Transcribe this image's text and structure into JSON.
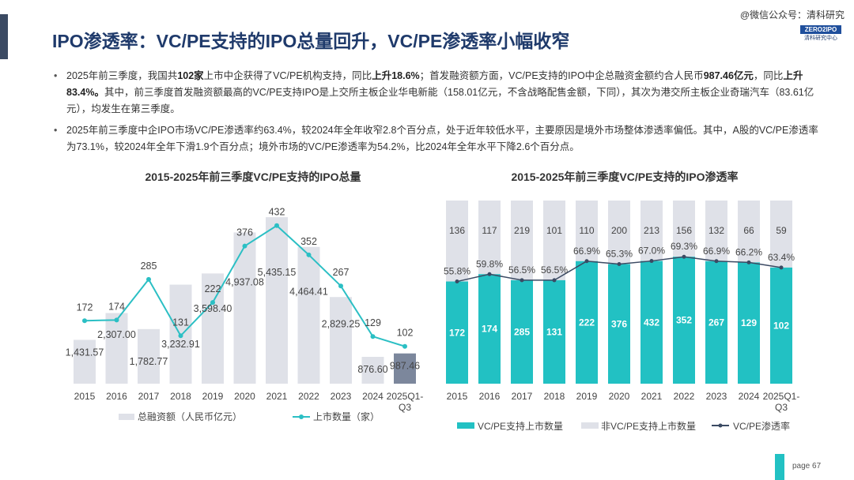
{
  "header": {
    "title": "IPO渗透率：VC/PE支持的IPO总量回升，VC/PE渗透率小幅收窄",
    "watermark": "@微信公众号：清科研究",
    "logo_text": "ZERO2IPO",
    "logo_sub": "清科研究中心"
  },
  "bullets": [
    [
      "2025年前三季度，我国共",
      "102家",
      "上市中企获得了VC/PE机构支持，同比",
      "上升18.6%",
      "；首发融资额方面，VC/PE支持的IPO中企总融资金额约合人民币",
      "987.46亿元",
      "，同比",
      "上升83.4%。",
      "其中，前三季度首发融资额最高的VC/PE支持IPO是上交所主板企业华电新能（158.01亿元，不含战略配售金额，下同），其次为港交所主板企业奇瑞汽车（83.61亿元），均发生在第三季度。"
    ],
    [
      "2025年前三季度中企IPO市场VC/PE渗透率约63.4%，较2024年全年收窄2.8个百分点，处于近年较低水平，主要原因是境外市场整体渗透率偏低。其中，A股的VC/PE渗透率为73.1%，较2024年全年下滑1.9个百分点；境外市场的VC/PE渗透率为54.2%，比2024年全年水平下降2.6个百分点。"
    ]
  ],
  "chart_data": [
    {
      "type": "bar+line",
      "title": "2015-2025年前三季度VC/PE支持的IPO总量",
      "categories": [
        "2015",
        "2016",
        "2017",
        "2018",
        "2019",
        "2020",
        "2021",
        "2022",
        "2023",
        "2024",
        "2025Q1-Q3"
      ],
      "series": [
        {
          "name": "总融资额（人民币亿元）",
          "type": "bar",
          "values": [
            1431.57,
            2307.0,
            1782.77,
            3232.91,
            3598.4,
            4937.08,
            5435.15,
            4464.41,
            2829.25,
            876.6,
            987.46
          ],
          "labels": [
            "1,431.57",
            "2,307.00",
            "1,782.77",
            "3,232.91",
            "3,598.40",
            "4,937.08",
            "5,435.15",
            "4,464.41",
            "2,829.25",
            "876.60",
            "987.46"
          ],
          "color": "#dfe1e8",
          "highlight_color": "#7c879c"
        },
        {
          "name": "上市数量（家）",
          "type": "line",
          "values": [
            172,
            174,
            285,
            131,
            222,
            376,
            432,
            352,
            267,
            129,
            102
          ],
          "color": "#2bbfc4"
        }
      ],
      "legend": "bottom"
    },
    {
      "type": "stacked-bar+line",
      "title": "2015-2025年前三季度VC/PE支持的IPO渗透率",
      "categories": [
        "2015",
        "2016",
        "2017",
        "2018",
        "2019",
        "2020",
        "2021",
        "2022",
        "2023",
        "2024",
        "2025Q1-Q3"
      ],
      "series": [
        {
          "name": "VC/PE支持上市数量",
          "type": "bar",
          "values": [
            172,
            174,
            285,
            131,
            222,
            376,
            432,
            352,
            267,
            129,
            102
          ],
          "color": "#22c1c3"
        },
        {
          "name": "非VC/PE支持上市数量",
          "type": "bar",
          "values": [
            136,
            117,
            219,
            101,
            110,
            200,
            213,
            156,
            132,
            66,
            59
          ],
          "color": "#dfe1e8"
        },
        {
          "name": "VC/PE渗透率",
          "type": "line",
          "values": [
            55.8,
            59.8,
            56.5,
            56.5,
            66.9,
            65.3,
            67.0,
            69.3,
            66.9,
            66.2,
            63.4
          ],
          "labels": [
            "55.8%",
            "59.8%",
            "56.5%",
            "56.5%",
            "66.9%",
            "65.3%",
            "67.0%",
            "69.3%",
            "66.9%",
            "66.2%",
            "63.4%"
          ],
          "color": "#3b4a63"
        }
      ],
      "legend": "bottom"
    }
  ],
  "footer": {
    "page": "page  67"
  }
}
